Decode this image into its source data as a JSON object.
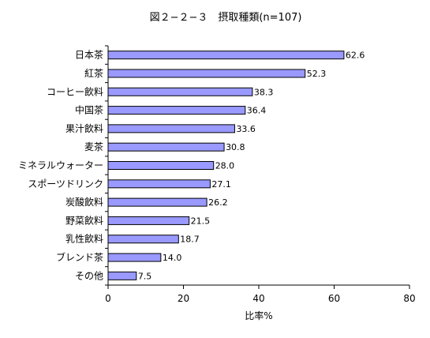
{
  "chart_data": {
    "type": "bar",
    "orientation": "horizontal",
    "title": "図２−２−３　摂取種類(n=107)",
    "xlabel": "比率%",
    "ylabel": "",
    "xlim": [
      0,
      80
    ],
    "xticks": [
      "0",
      "20",
      "40",
      "60",
      "80"
    ],
    "grid": false,
    "legend": "none",
    "bar_color": "#9999ff",
    "bar_edge_color": "#000000",
    "categories": [
      "日本茶",
      "紅茶",
      "コーヒー飲料",
      "中国茶",
      "果汁飲料",
      "麦茶",
      "ミネラルウォーター",
      "スポーツドリンク",
      "炭酸飲料",
      "野菜飲料",
      "乳性飲料",
      "ブレンド茶",
      "その他"
    ],
    "values": [
      62.6,
      52.3,
      38.3,
      36.4,
      33.6,
      30.8,
      28.0,
      27.1,
      26.2,
      21.5,
      18.7,
      14.0,
      7.5
    ],
    "value_labels": [
      "62.6",
      "52.3",
      "38.3",
      "36.4",
      "33.6",
      "30.8",
      "28.0",
      "27.1",
      "26.2",
      "21.5",
      "18.7",
      "14.0",
      "7.5"
    ]
  }
}
